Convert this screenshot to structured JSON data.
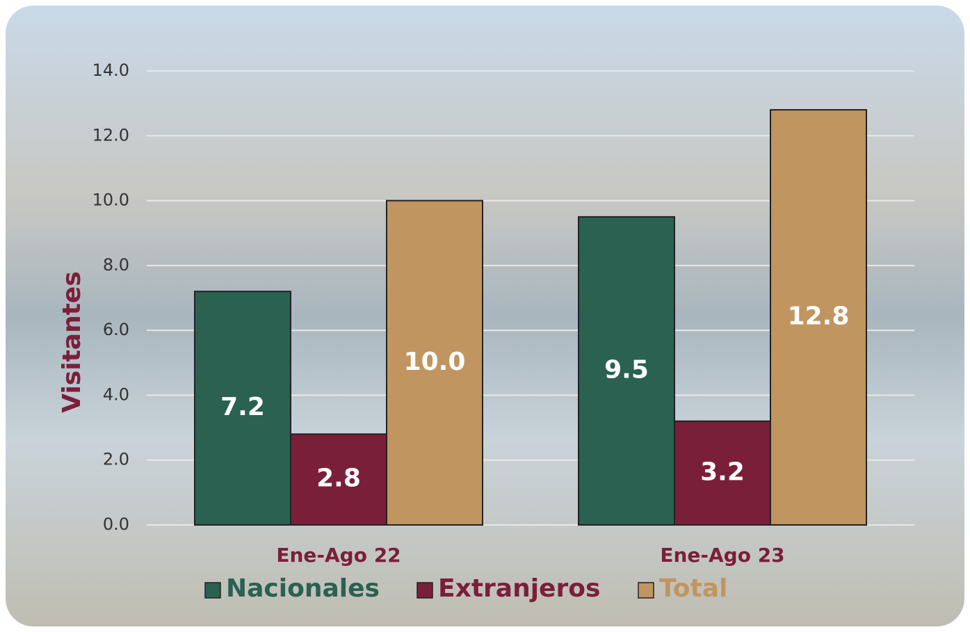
{
  "chart_data": {
    "type": "bar",
    "y_label": "Visitantes",
    "categories": [
      "Ene-Ago 22",
      "Ene-Ago 23"
    ],
    "series": [
      {
        "name": "Nacionales",
        "color": "#2a6150",
        "values": [
          7.2,
          9.5
        ],
        "value_labels": [
          "7.2",
          "9.5"
        ]
      },
      {
        "name": "Extranjeros",
        "color": "#7a1f3a",
        "values": [
          2.8,
          3.2
        ],
        "value_labels": [
          "2.8",
          "3.2"
        ]
      },
      {
        "name": "Total",
        "color": "#c09560",
        "values": [
          10.0,
          12.8
        ],
        "value_labels": [
          "10.0",
          "12.8"
        ]
      }
    ],
    "ylim": [
      0,
      14
    ],
    "yticks": [
      {
        "value": 0,
        "label": "0.0"
      },
      {
        "value": 2,
        "label": "2.0"
      },
      {
        "value": 4,
        "label": "4.0"
      },
      {
        "value": 6,
        "label": "6.0"
      },
      {
        "value": 8,
        "label": "8.0"
      },
      {
        "value": 10,
        "label": "10.0"
      },
      {
        "value": 12,
        "label": "12.0"
      },
      {
        "value": 14,
        "label": "14.0"
      }
    ],
    "grid": true,
    "legend": "bottom"
  }
}
